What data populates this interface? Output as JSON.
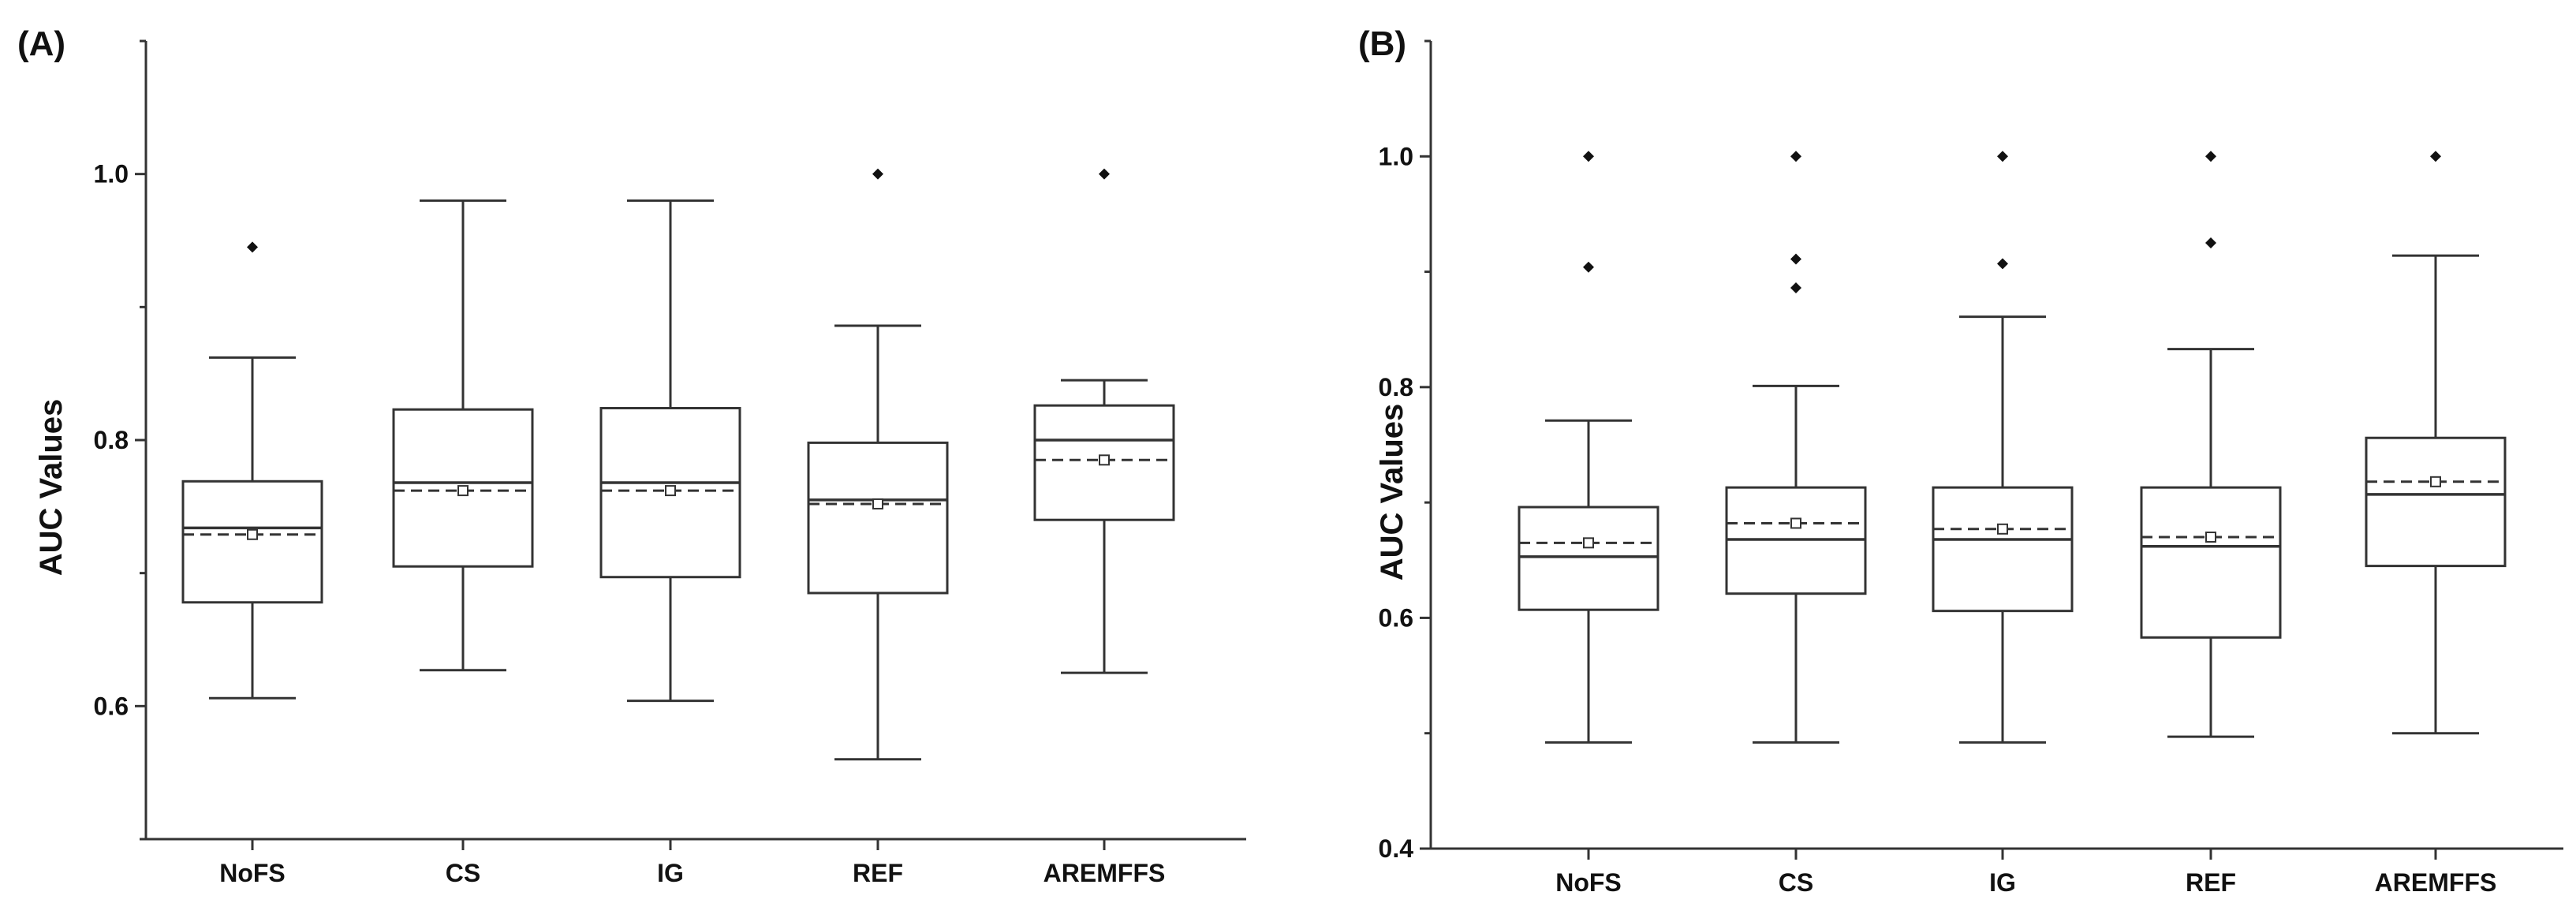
{
  "chart_data": [
    {
      "type": "box",
      "panel_label": "(A)",
      "title": "",
      "xlabel": "",
      "ylabel": "AUC Values",
      "ylim": [
        0.5,
        1.1
      ],
      "yticks_major": [
        0.6,
        0.8,
        1.0
      ],
      "ytick_labels": [
        "0.6",
        "0.8",
        "1.0"
      ],
      "yticks_minor": [
        0.5,
        0.7,
        0.9,
        1.1
      ],
      "categories": [
        "NoFS",
        "CS",
        "IG",
        "REF",
        "AREMFFS"
      ],
      "boxes": [
        {
          "category": "NoFS",
          "whisker_low": 0.606,
          "q1": 0.678,
          "median": 0.734,
          "mean": 0.729,
          "q3": 0.769,
          "whisker_high": 0.862,
          "outliers": [
            0.945
          ]
        },
        {
          "category": "CS",
          "whisker_low": 0.627,
          "q1": 0.705,
          "median": 0.768,
          "mean": 0.762,
          "q3": 0.823,
          "whisker_high": 0.98,
          "outliers": []
        },
        {
          "category": "IG",
          "whisker_low": 0.604,
          "q1": 0.697,
          "median": 0.768,
          "mean": 0.762,
          "q3": 0.824,
          "whisker_high": 0.98,
          "outliers": []
        },
        {
          "category": "REF",
          "whisker_low": 0.56,
          "q1": 0.685,
          "median": 0.755,
          "mean": 0.752,
          "q3": 0.798,
          "whisker_high": 0.886,
          "outliers": [
            1.0
          ]
        },
        {
          "category": "AREMFFS",
          "whisker_low": 0.625,
          "q1": 0.74,
          "median": 0.8,
          "mean": 0.785,
          "q3": 0.826,
          "whisker_high": 0.845,
          "outliers": [
            1.0
          ]
        }
      ]
    },
    {
      "type": "box",
      "panel_label": "(B)",
      "title": "",
      "xlabel": "",
      "ylabel": "AUC Values",
      "ylim": [
        0.4,
        1.1
      ],
      "yticks_major": [
        0.4,
        0.6,
        0.8,
        1.0
      ],
      "ytick_labels": [
        "0.4",
        "0.6",
        "0.8",
        "1.0"
      ],
      "yticks_minor": [
        0.5,
        0.7,
        0.9,
        1.1
      ],
      "categories": [
        "NoFS",
        "CS",
        "IG",
        "REF",
        "AREMFFS"
      ],
      "boxes": [
        {
          "category": "NoFS",
          "whisker_low": 0.492,
          "q1": 0.607,
          "median": 0.653,
          "mean": 0.665,
          "q3": 0.696,
          "whisker_high": 0.771,
          "outliers": [
            0.904,
            1.0
          ]
        },
        {
          "category": "CS",
          "whisker_low": 0.492,
          "q1": 0.621,
          "median": 0.668,
          "mean": 0.682,
          "q3": 0.713,
          "whisker_high": 0.801,
          "outliers": [
            0.886,
            0.911,
            1.0
          ]
        },
        {
          "category": "IG",
          "whisker_low": 0.492,
          "q1": 0.606,
          "median": 0.668,
          "mean": 0.677,
          "q3": 0.713,
          "whisker_high": 0.861,
          "outliers": [
            0.907,
            1.0
          ]
        },
        {
          "category": "REF",
          "whisker_low": 0.497,
          "q1": 0.583,
          "median": 0.662,
          "mean": 0.67,
          "q3": 0.713,
          "whisker_high": 0.833,
          "outliers": [
            0.925,
            1.0
          ]
        },
        {
          "category": "AREMFFS",
          "whisker_low": 0.5,
          "q1": 0.645,
          "median": 0.707,
          "mean": 0.718,
          "q3": 0.756,
          "whisker_high": 0.914,
          "outliers": [
            1.0
          ]
        }
      ]
    }
  ]
}
